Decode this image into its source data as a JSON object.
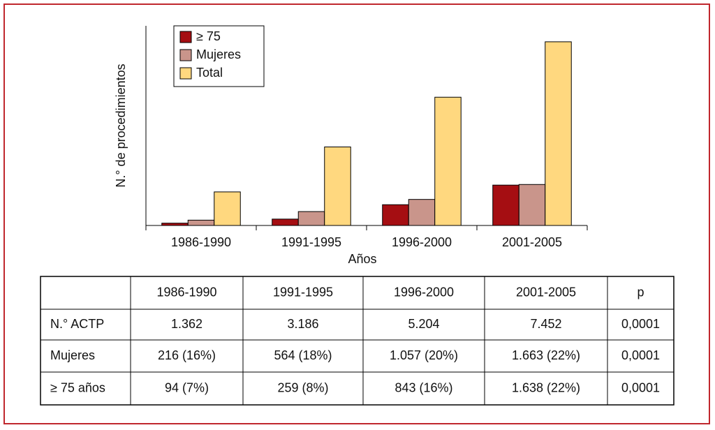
{
  "chart_data": {
    "type": "bar",
    "y_label": "N.° de procedimientos",
    "x_label": "Años",
    "categories": [
      "1986-1990",
      "1991-1995",
      "1996-2000",
      "2001-2005"
    ],
    "series": [
      {
        "name": "≥ 75",
        "color": "#a50e12",
        "values": [
          94,
          259,
          843,
          1638
        ]
      },
      {
        "name": "Mujeres",
        "color": "#c9958b",
        "values": [
          216,
          564,
          1057,
          1663
        ]
      },
      {
        "name": "Total",
        "color": "#ffd87f",
        "values": [
          1362,
          3186,
          5204,
          7452
        ]
      }
    ],
    "ylim": [
      0,
      8100
    ],
    "legend": "upper left"
  },
  "table": {
    "header": [
      "1986-1990",
      "1991-1995",
      "1996-2000",
      "2001-2005",
      "p"
    ],
    "rows": [
      [
        "N.° ACTP",
        "1.362",
        "3.186",
        "5.204",
        "7.452",
        "0,0001"
      ],
      [
        "Mujeres",
        "216 (16%)",
        "564 (18%)",
        "1.057 (20%)",
        "1.663 (22%)",
        "0,0001"
      ],
      [
        "≥ 75 años",
        "94 (7%)",
        "259 (8%)",
        "843 (16%)",
        "1.638 (22%)",
        "0,0001"
      ]
    ]
  }
}
